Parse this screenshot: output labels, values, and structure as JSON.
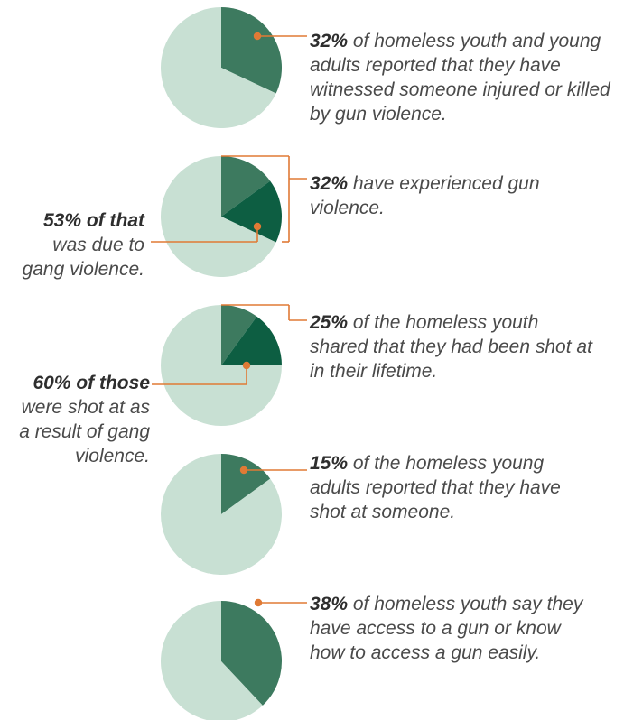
{
  "chart_data": [
    {
      "type": "pie",
      "slices": [
        {
          "value": 32
        },
        {
          "value": 68
        }
      ],
      "colors": [
        "#3d7a5f",
        "#c8e0d3"
      ],
      "annotation": {
        "highlight": "32%",
        "text": " of homeless youth and young adults reported that they have witnessed someone injured or killed by gun violence."
      }
    },
    {
      "type": "pie",
      "slices": [
        {
          "value": 15
        },
        {
          "value": 17
        },
        {
          "value": 68
        }
      ],
      "colors": [
        "#3d7a5f",
        "#0d5e42",
        "#c8e0d3"
      ],
      "annotation": {
        "highlight": "32%",
        "text": " have experienced gun violence."
      },
      "sub_annotation": {
        "highlight": "53% of that",
        "text": " was due to gang violence."
      }
    },
    {
      "type": "pie",
      "slices": [
        {
          "value": 10
        },
        {
          "value": 15
        },
        {
          "value": 75
        }
      ],
      "colors": [
        "#3d7a5f",
        "#0d5e42",
        "#c8e0d3"
      ],
      "annotation": {
        "highlight": "25%",
        "text": " of the homeless youth shared that they had been shot at in their lifetime."
      },
      "sub_annotation": {
        "highlight": "60% of those",
        "text": " were shot at as a result of gang violence."
      }
    },
    {
      "type": "pie",
      "slices": [
        {
          "value": 15
        },
        {
          "value": 85
        }
      ],
      "colors": [
        "#3d7a5f",
        "#c8e0d3"
      ],
      "annotation": {
        "highlight": "15%",
        "text": " of the homeless young adults reported that they have shot at someone."
      }
    },
    {
      "type": "pie",
      "slices": [
        {
          "value": 38
        },
        {
          "value": 62
        }
      ],
      "colors": [
        "#3d7a5f",
        "#c8e0d3"
      ],
      "annotation": {
        "highlight": "38%",
        "text": " of homeless youth say they have access to a gun or know how to access a gun easily."
      }
    }
  ],
  "colors": {
    "leader": "#e07a35",
    "text": "#4a4a4a"
  }
}
